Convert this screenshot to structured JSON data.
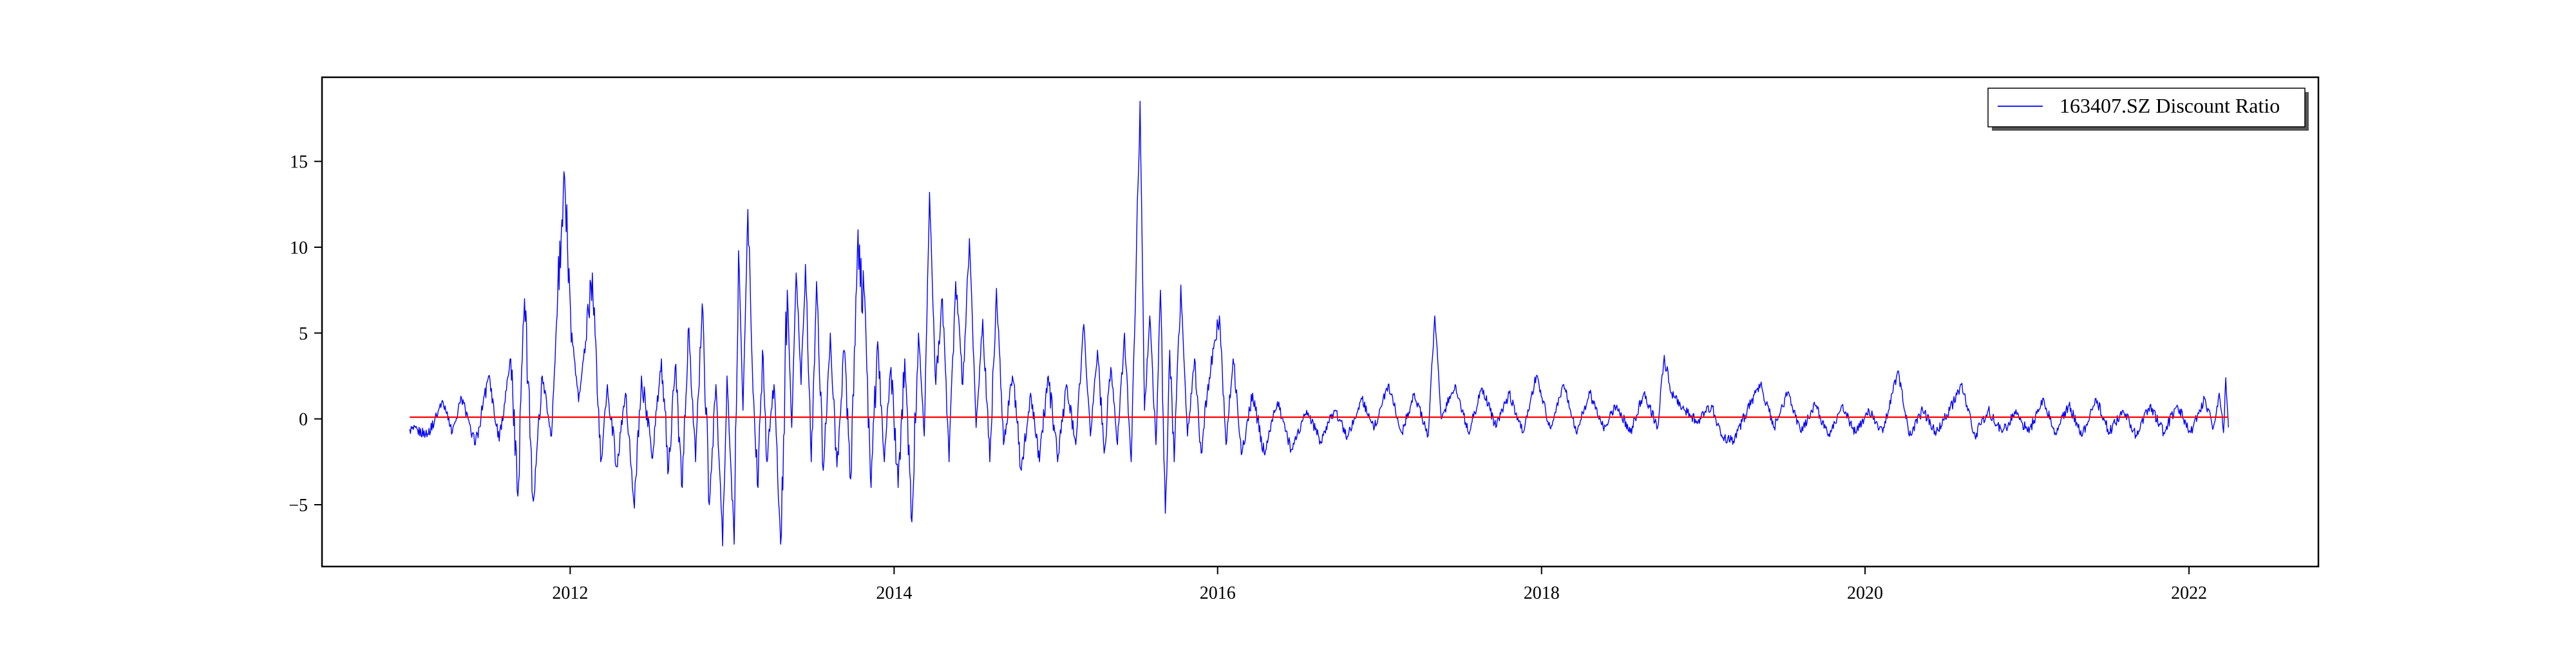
{
  "chart_data": {
    "type": "line",
    "title": "",
    "xlabel": "",
    "ylabel": "",
    "x_range": [
      "2011-01-04",
      "2022-03-31"
    ],
    "xlim": [
      "2010-06-20",
      "2022-10-20"
    ],
    "ylim": [
      -8.6,
      19.9
    ],
    "x_ticks": [
      "2012",
      "2014",
      "2016",
      "2018",
      "2020",
      "2022"
    ],
    "y_ticks": [
      "−5",
      "0",
      "5",
      "10",
      "15"
    ],
    "grid": false,
    "legend": {
      "position": "top-right",
      "entries": [
        "163407.SZ Discount Ratio"
      ]
    },
    "series": [
      {
        "name": "163407.SZ Discount Ratio",
        "color": "#0000ff",
        "points": [
          [
            "2011-01-04",
            -0.6
          ],
          [
            "2011-02-15",
            -0.9
          ],
          [
            "2011-03-20",
            1.0
          ],
          [
            "2011-04-10",
            -0.8
          ],
          [
            "2011-05-01",
            1.2
          ],
          [
            "2011-06-01",
            -1.5
          ],
          [
            "2011-07-01",
            2.5
          ],
          [
            "2011-07-25",
            -1.3
          ],
          [
            "2011-08-20",
            3.5
          ],
          [
            "2011-09-05",
            -4.5
          ],
          [
            "2011-09-20",
            7.0
          ],
          [
            "2011-10-10",
            -4.8
          ],
          [
            "2011-10-30",
            2.5
          ],
          [
            "2011-11-20",
            -1.0
          ],
          [
            "2011-12-01",
            5.5
          ],
          [
            "2011-12-18",
            14.4
          ],
          [
            "2012-01-05",
            5.0
          ],
          [
            "2012-01-20",
            1.0
          ],
          [
            "2012-02-05",
            4.5
          ],
          [
            "2012-02-20",
            8.5
          ],
          [
            "2012-03-10",
            -2.5
          ],
          [
            "2012-03-25",
            2.0
          ],
          [
            "2012-04-15",
            -2.8
          ],
          [
            "2012-05-05",
            1.5
          ],
          [
            "2012-05-25",
            -5.2
          ],
          [
            "2012-06-10",
            2.5
          ],
          [
            "2012-07-05",
            -2.3
          ],
          [
            "2012-07-25",
            3.5
          ],
          [
            "2012-08-10",
            -3.0
          ],
          [
            "2012-08-25",
            3.0
          ],
          [
            "2012-09-10",
            -4.0
          ],
          [
            "2012-09-25",
            5.3
          ],
          [
            "2012-10-10",
            -2.5
          ],
          [
            "2012-10-25",
            6.7
          ],
          [
            "2012-11-10",
            -5.0
          ],
          [
            "2012-11-25",
            2.0
          ],
          [
            "2012-12-10",
            -7.4
          ],
          [
            "2012-12-20",
            2.5
          ],
          [
            "2013-01-05",
            -7.3
          ],
          [
            "2013-01-15",
            9.8
          ],
          [
            "2013-01-25",
            0.5
          ],
          [
            "2013-02-05",
            12.2
          ],
          [
            "2013-02-15",
            3.0
          ],
          [
            "2013-02-28",
            -4.0
          ],
          [
            "2013-03-10",
            4.0
          ],
          [
            "2013-03-20",
            -2.5
          ],
          [
            "2013-04-05",
            2.0
          ],
          [
            "2013-04-20",
            -7.3
          ],
          [
            "2013-05-05",
            7.5
          ],
          [
            "2013-05-15",
            -0.5
          ],
          [
            "2013-05-25",
            8.5
          ],
          [
            "2013-06-05",
            2.0
          ],
          [
            "2013-06-15",
            9.0
          ],
          [
            "2013-06-28",
            -2.5
          ],
          [
            "2013-07-10",
            8.0
          ],
          [
            "2013-07-25",
            -3.0
          ],
          [
            "2013-08-10",
            5.0
          ],
          [
            "2013-08-25",
            -2.8
          ],
          [
            "2013-09-10",
            4.0
          ],
          [
            "2013-09-25",
            -3.5
          ],
          [
            "2013-10-10",
            9.7
          ],
          [
            "2013-10-25",
            7.5
          ],
          [
            "2013-11-10",
            -4.0
          ],
          [
            "2013-11-25",
            4.5
          ],
          [
            "2013-12-10",
            -2.5
          ],
          [
            "2013-12-25",
            3.0
          ],
          [
            "2014-01-10",
            -4.0
          ],
          [
            "2014-01-25",
            3.5
          ],
          [
            "2014-02-10",
            -6.0
          ],
          [
            "2014-02-25",
            5.0
          ],
          [
            "2014-03-10",
            -1.0
          ],
          [
            "2014-03-22",
            13.2
          ],
          [
            "2014-04-05",
            2.0
          ],
          [
            "2014-04-20",
            7.0
          ],
          [
            "2014-05-05",
            -2.5
          ],
          [
            "2014-05-20",
            8.0
          ],
          [
            "2014-06-05",
            2.0
          ],
          [
            "2014-06-20",
            10.5
          ],
          [
            "2014-07-05",
            -0.5
          ],
          [
            "2014-07-20",
            5.8
          ],
          [
            "2014-08-05",
            -2.5
          ],
          [
            "2014-08-20",
            7.6
          ],
          [
            "2014-09-05",
            -1.5
          ],
          [
            "2014-09-25",
            2.5
          ],
          [
            "2014-10-15",
            -3.0
          ],
          [
            "2014-11-05",
            1.5
          ],
          [
            "2014-11-25",
            -2.5
          ],
          [
            "2014-12-15",
            2.5
          ],
          [
            "2015-01-05",
            -2.5
          ],
          [
            "2015-01-25",
            2.0
          ],
          [
            "2015-02-15",
            -1.5
          ],
          [
            "2015-03-05",
            5.5
          ],
          [
            "2015-03-20",
            -1.0
          ],
          [
            "2015-04-05",
            4.0
          ],
          [
            "2015-04-20",
            -2.0
          ],
          [
            "2015-05-05",
            3.0
          ],
          [
            "2015-05-20",
            -1.5
          ],
          [
            "2015-06-05",
            5.0
          ],
          [
            "2015-06-20",
            -2.5
          ],
          [
            "2015-07-10",
            18.5
          ],
          [
            "2015-07-20",
            0.5
          ],
          [
            "2015-08-01",
            6.0
          ],
          [
            "2015-08-15",
            -1.5
          ],
          [
            "2015-08-25",
            7.5
          ],
          [
            "2015-09-05",
            -5.5
          ],
          [
            "2015-09-15",
            4.0
          ],
          [
            "2015-09-25",
            -2.5
          ],
          [
            "2015-10-10",
            7.8
          ],
          [
            "2015-10-25",
            -1.0
          ],
          [
            "2015-11-10",
            3.5
          ],
          [
            "2015-11-25",
            -2.0
          ],
          [
            "2015-12-10",
            2.0
          ],
          [
            "2016-01-05",
            6.0
          ],
          [
            "2016-01-20",
            -1.5
          ],
          [
            "2016-02-05",
            3.5
          ],
          [
            "2016-02-25",
            -2.0
          ],
          [
            "2016-03-20",
            1.5
          ],
          [
            "2016-04-15",
            -2.0
          ],
          [
            "2016-05-15",
            1.0
          ],
          [
            "2016-06-15",
            -1.8
          ],
          [
            "2016-07-20",
            0.5
          ],
          [
            "2016-08-20",
            -1.3
          ],
          [
            "2016-09-20",
            0.5
          ],
          [
            "2016-10-20",
            -1.0
          ],
          [
            "2016-11-20",
            1.2
          ],
          [
            "2016-12-20",
            -0.5
          ],
          [
            "2017-01-20",
            2.0
          ],
          [
            "2017-02-20",
            -0.8
          ],
          [
            "2017-03-20",
            1.5
          ],
          [
            "2017-04-20",
            -1.0
          ],
          [
            "2017-05-05",
            6.0
          ],
          [
            "2017-05-20",
            0.0
          ],
          [
            "2017-06-20",
            2.0
          ],
          [
            "2017-07-20",
            -0.8
          ],
          [
            "2017-08-20",
            1.8
          ],
          [
            "2017-09-20",
            -0.5
          ],
          [
            "2017-10-20",
            1.5
          ],
          [
            "2017-11-20",
            -0.8
          ],
          [
            "2017-12-20",
            2.5
          ],
          [
            "2018-01-20",
            -0.5
          ],
          [
            "2018-02-20",
            2.0
          ],
          [
            "2018-03-20",
            -0.8
          ],
          [
            "2018-04-20",
            1.5
          ],
          [
            "2018-05-20",
            -0.5
          ],
          [
            "2018-06-20",
            0.8
          ],
          [
            "2018-07-20",
            -0.8
          ],
          [
            "2018-08-20",
            1.5
          ],
          [
            "2018-09-20",
            -0.5
          ],
          [
            "2018-10-05",
            3.7
          ],
          [
            "2018-10-20",
            1.5
          ],
          [
            "2018-11-20",
            0.5
          ],
          [
            "2018-12-20",
            -0.2
          ],
          [
            "2019-01-20",
            0.8
          ],
          [
            "2019-02-10",
            -1.0
          ],
          [
            "2019-03-10",
            -1.3
          ],
          [
            "2019-04-10",
            0.5
          ],
          [
            "2019-05-10",
            2.0
          ],
          [
            "2019-06-10",
            -0.5
          ],
          [
            "2019-07-10",
            1.5
          ],
          [
            "2019-08-10",
            -0.8
          ],
          [
            "2019-09-10",
            0.8
          ],
          [
            "2019-10-10",
            -1.0
          ],
          [
            "2019-11-10",
            0.8
          ],
          [
            "2019-12-10",
            -0.8
          ],
          [
            "2020-01-10",
            0.5
          ],
          [
            "2020-02-10",
            -0.8
          ],
          [
            "2020-03-15",
            2.8
          ],
          [
            "2020-04-10",
            -1.0
          ],
          [
            "2020-05-10",
            0.5
          ],
          [
            "2020-06-10",
            -0.8
          ],
          [
            "2020-07-10",
            0.5
          ],
          [
            "2020-08-05",
            2.0
          ],
          [
            "2020-09-05",
            -1.0
          ],
          [
            "2020-10-05",
            0.5
          ],
          [
            "2020-11-05",
            -0.8
          ],
          [
            "2020-12-05",
            0.3
          ],
          [
            "2021-01-05",
            -0.8
          ],
          [
            "2021-02-05",
            1.2
          ],
          [
            "2021-03-05",
            -0.8
          ],
          [
            "2021-04-05",
            0.8
          ],
          [
            "2021-05-05",
            -1.0
          ],
          [
            "2021-06-05",
            1.2
          ],
          [
            "2021-07-05",
            -0.8
          ],
          [
            "2021-08-05",
            0.5
          ],
          [
            "2021-09-05",
            -1.0
          ],
          [
            "2021-10-05",
            0.8
          ],
          [
            "2021-11-05",
            -0.8
          ],
          [
            "2021-12-05",
            0.8
          ],
          [
            "2022-01-05",
            -0.8
          ],
          [
            "2022-02-05",
            1.2
          ],
          [
            "2022-02-25",
            -0.5
          ],
          [
            "2022-03-10",
            1.5
          ],
          [
            "2022-03-20",
            -0.8
          ],
          [
            "2022-03-25",
            2.4
          ],
          [
            "2022-03-31",
            -0.5
          ]
        ]
      },
      {
        "name": "",
        "color": "#ff0000",
        "points": [
          [
            "2011-01-04",
            0.1
          ],
          [
            "2022-03-31",
            0.1
          ]
        ]
      }
    ]
  }
}
